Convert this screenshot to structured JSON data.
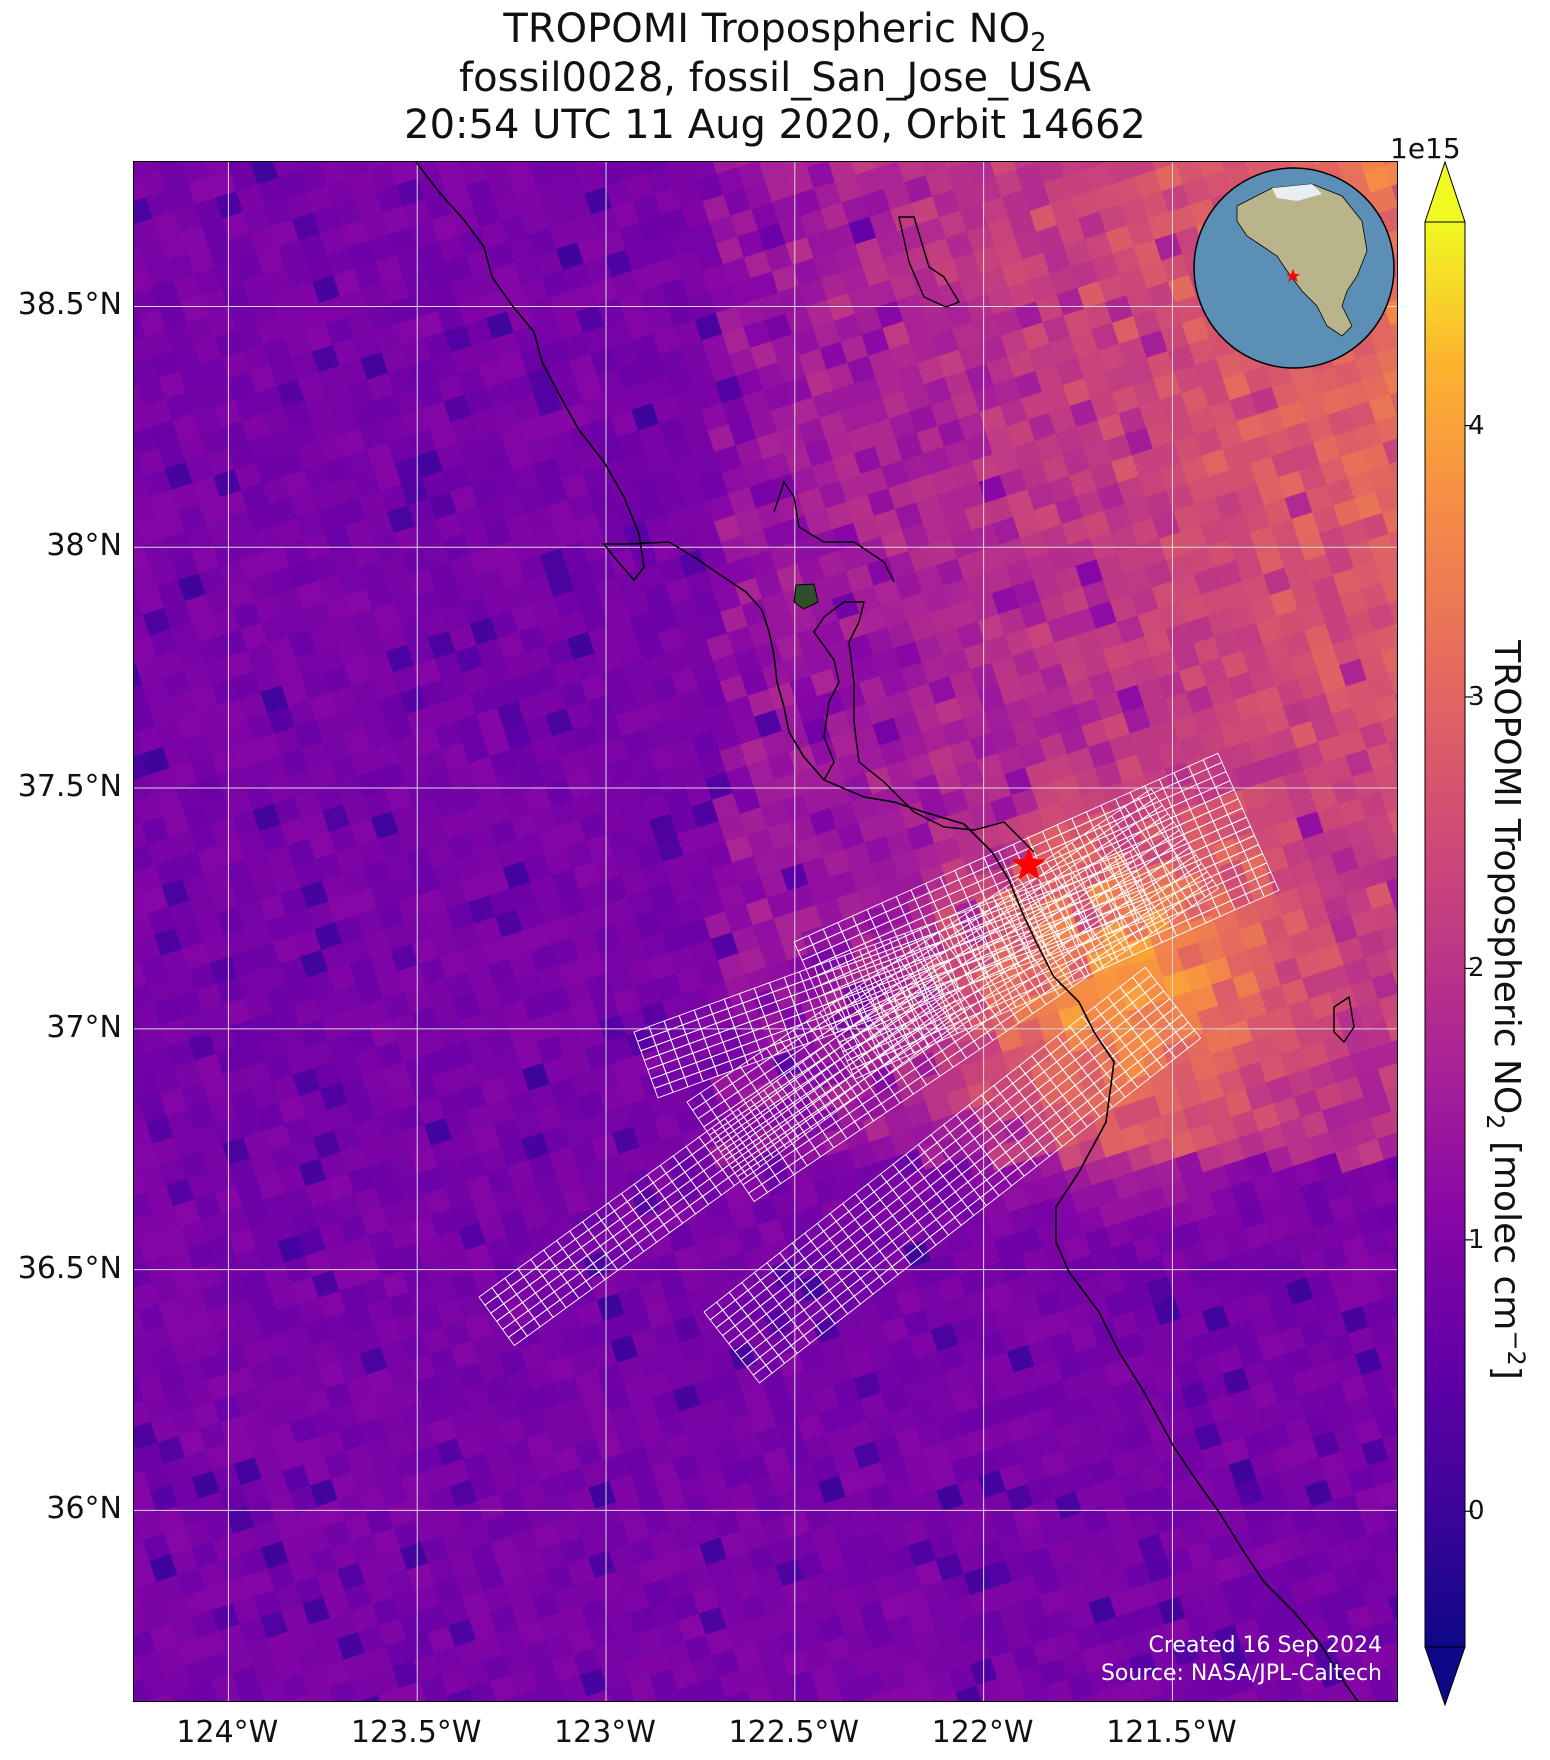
{
  "title": {
    "line1_prefix": "TROPOMI Tropospheric NO",
    "line1_sub": "2",
    "line2": "fossil0028, fossil_San_Jose_USA",
    "line3": "20:54 UTC 11 Aug 2020, Orbit 14662"
  },
  "map": {
    "lat_range": [
      35.6,
      38.8
    ],
    "lon_range": [
      -124.25,
      -120.9
    ],
    "lat_ticks": [
      {
        "value": 38.5,
        "label": "38.5°N"
      },
      {
        "value": 38.0,
        "label": "38°N"
      },
      {
        "value": 37.5,
        "label": "37.5°N"
      },
      {
        "value": 37.0,
        "label": "37°N"
      },
      {
        "value": 36.5,
        "label": "36.5°N"
      },
      {
        "value": 36.0,
        "label": "36°N"
      }
    ],
    "lon_ticks": [
      {
        "value": -124.0,
        "label": "124°W"
      },
      {
        "value": -123.5,
        "label": "123.5°W"
      },
      {
        "value": -123.0,
        "label": "123°W"
      },
      {
        "value": -122.5,
        "label": "122.5°W"
      },
      {
        "value": -122.0,
        "label": "122°W"
      },
      {
        "value": -121.5,
        "label": "121.5°W"
      }
    ],
    "gridlines": true,
    "target": {
      "name": "San Jose",
      "lon": -121.88,
      "lat": 37.34,
      "color": "#ff0000"
    },
    "credit_line1": "Created 16 Sep 2024",
    "credit_line2": "Source: NASA/JPL-Caltech"
  },
  "colorbar": {
    "colormap": "plasma",
    "range": [
      -0.5,
      4.75
    ],
    "exponent_label": "1e15",
    "ticks": [
      {
        "value": 4,
        "label": "4"
      },
      {
        "value": 3,
        "label": "3"
      },
      {
        "value": 2,
        "label": "2"
      },
      {
        "value": 1,
        "label": "1"
      },
      {
        "value": 0,
        "label": "0"
      }
    ],
    "label_prefix": "TROPOMI Tropospheric NO",
    "label_sub": "2",
    "label_mid": " [molec cm",
    "label_sup": "−2",
    "label_suffix": "]"
  },
  "inset_globe": {
    "ocean_color": "#5b8fb5",
    "land_color": "#b9b48a"
  }
}
